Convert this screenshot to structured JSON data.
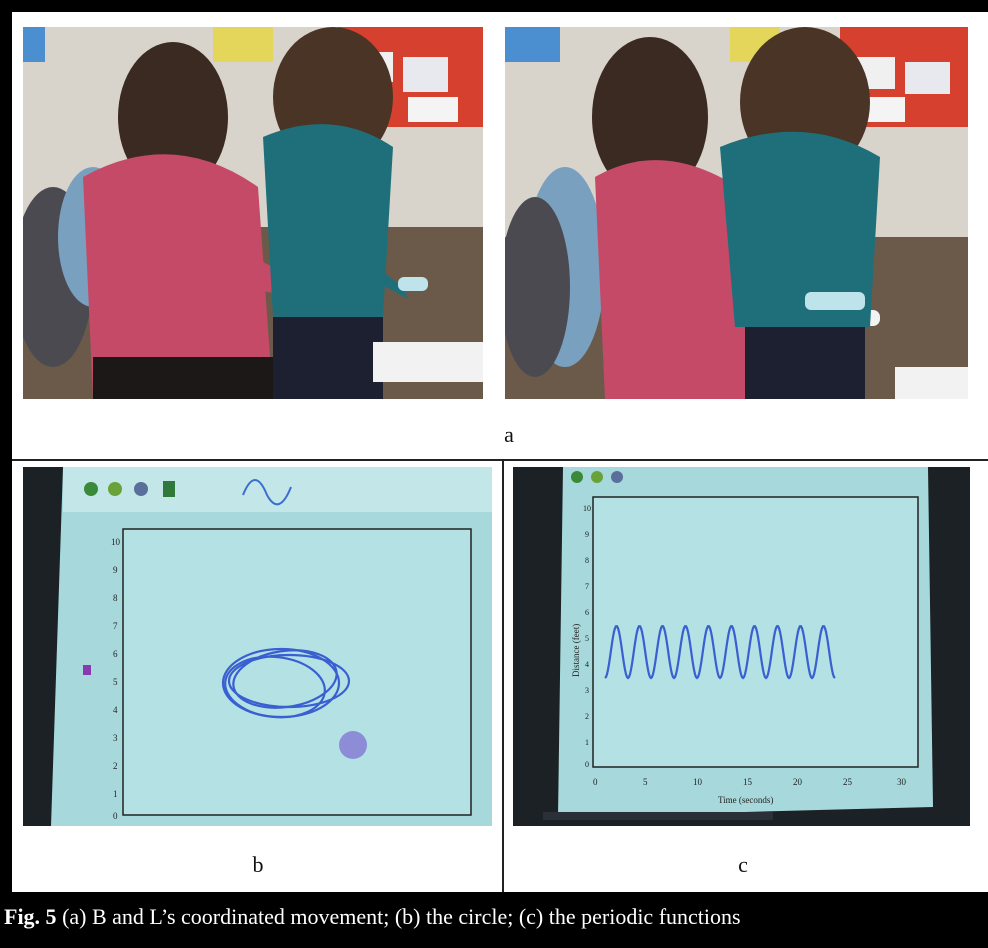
{
  "panel_labels": {
    "a": "a",
    "b": "b",
    "c": "c"
  },
  "caption": {
    "prefix": "Fig. 5",
    "text": " (a) B and L’s coordinated movement; (b) the circle; (c) the periodic functions"
  },
  "screen_b": {
    "y_ticks": [
      "10",
      "9",
      "8",
      "7",
      "6",
      "5",
      "4",
      "3",
      "2",
      "1",
      "0"
    ]
  },
  "screen_c": {
    "y_label": "Distance (feet)",
    "x_label": "Time (seconds)",
    "x_ticks": [
      "0",
      "5",
      "10",
      "15",
      "20",
      "25",
      "30"
    ],
    "y_ticks": [
      "10",
      "9",
      "8",
      "7",
      "6",
      "5",
      "4",
      "3",
      "2",
      "1",
      "0"
    ]
  },
  "colors": {
    "screen_bg": "#9fd3d8",
    "trace": "#3a5fd0",
    "sweater_pink": "#c44a68",
    "sweater_teal": "#1f6f7a"
  }
}
